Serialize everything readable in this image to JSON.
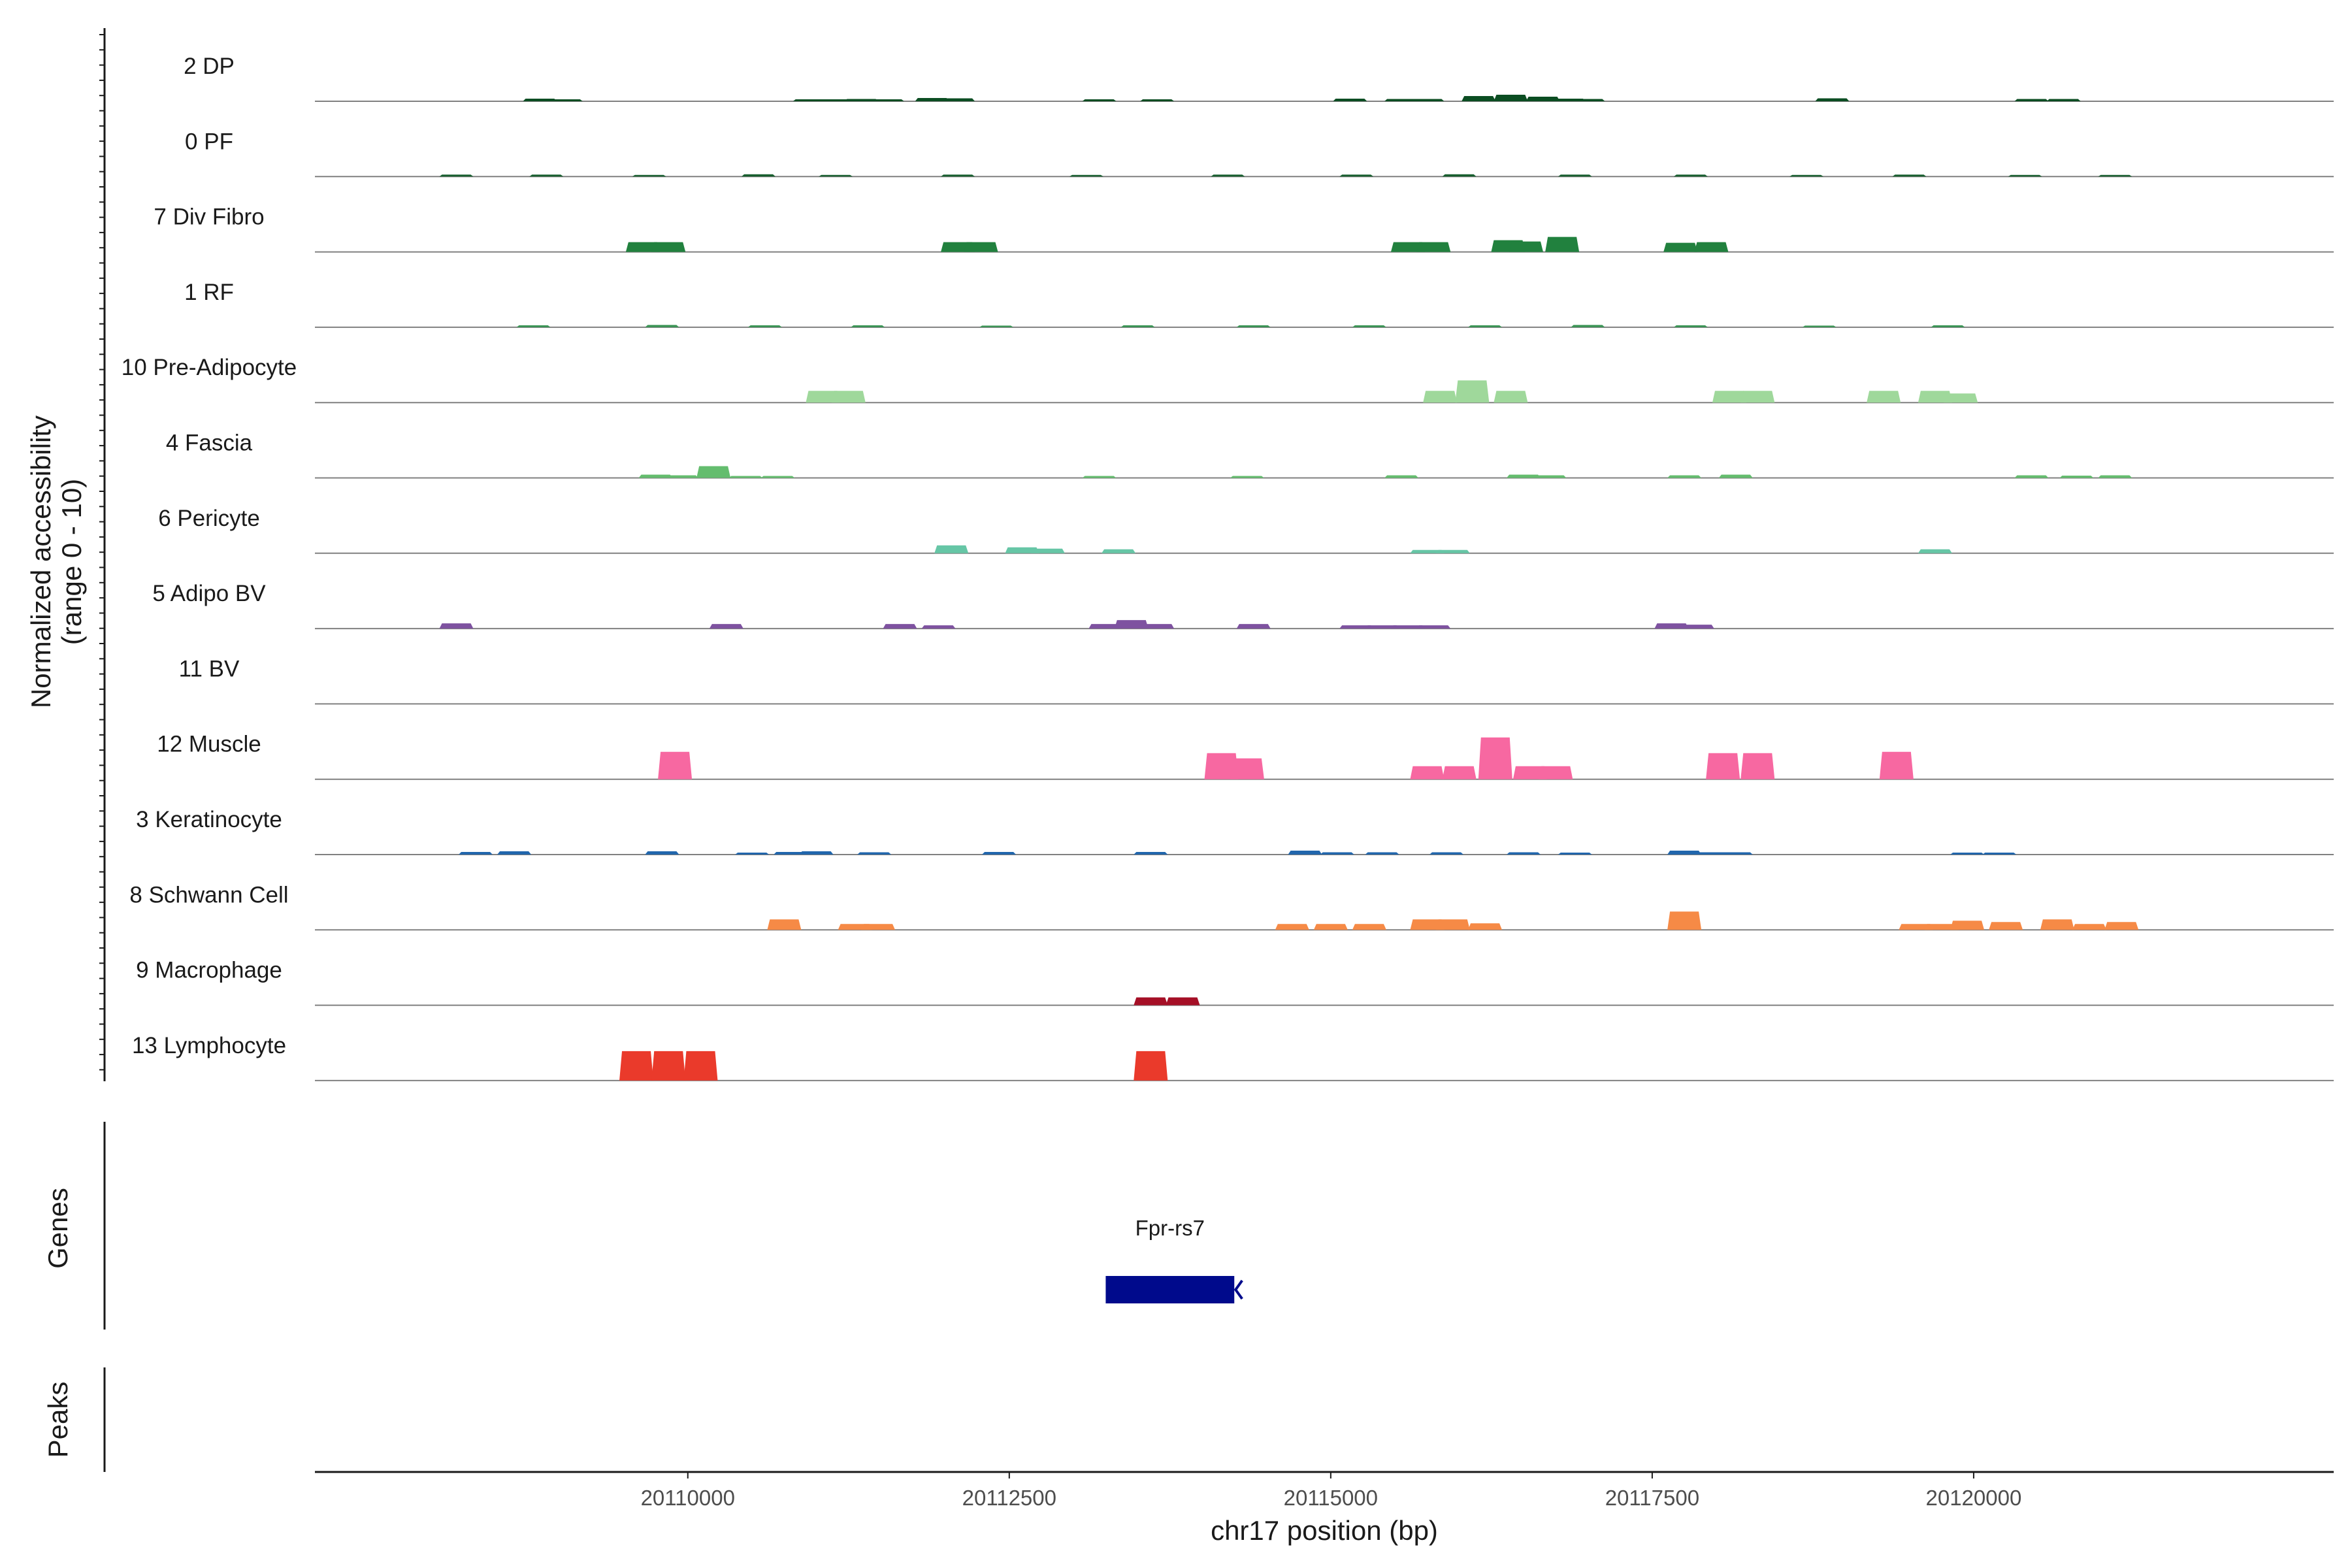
{
  "chart_data": {
    "type": "area",
    "title": "",
    "ylabel": [
      "Normalized accessibility",
      "(range 0 - 10)"
    ],
    "ylim": [
      0,
      10
    ],
    "xlabel": "chr17 position (bp)",
    "xlim": [
      20107100,
      20122800
    ],
    "xticks": [
      20110000,
      20112500,
      20115000,
      20117500,
      20120000
    ],
    "xtick_labels": [
      "20110000",
      "20112500",
      "20115000",
      "20117500",
      "20120000"
    ],
    "tracks": [
      {
        "name": "2 DP",
        "color": "#0b4d22",
        "peaks": [
          [
            20108850,
            0.4
          ],
          [
            20109050,
            0.3
          ],
          [
            20110950,
            0.3
          ],
          [
            20111150,
            0.3
          ],
          [
            20111350,
            0.35
          ],
          [
            20111550,
            0.3
          ],
          [
            20111900,
            0.5
          ],
          [
            20112100,
            0.45
          ],
          [
            20113200,
            0.3
          ],
          [
            20113650,
            0.3
          ],
          [
            20115150,
            0.4
          ],
          [
            20115550,
            0.35
          ],
          [
            20115750,
            0.35
          ],
          [
            20116150,
            0.8
          ],
          [
            20116400,
            1.0
          ],
          [
            20116650,
            0.7
          ],
          [
            20116850,
            0.4
          ],
          [
            20117000,
            0.35
          ],
          [
            20118900,
            0.45
          ],
          [
            20120450,
            0.35
          ],
          [
            20120700,
            0.35
          ]
        ]
      },
      {
        "name": "0 PF",
        "color": "#175e2e",
        "peaks": [
          [
            20108200,
            0.3
          ],
          [
            20108900,
            0.3
          ],
          [
            20109700,
            0.25
          ],
          [
            20110550,
            0.35
          ],
          [
            20111150,
            0.25
          ],
          [
            20112100,
            0.3
          ],
          [
            20113100,
            0.25
          ],
          [
            20114200,
            0.3
          ],
          [
            20115200,
            0.3
          ],
          [
            20116000,
            0.35
          ],
          [
            20116900,
            0.3
          ],
          [
            20117800,
            0.3
          ],
          [
            20118700,
            0.25
          ],
          [
            20119500,
            0.3
          ],
          [
            20120400,
            0.25
          ],
          [
            20121100,
            0.25
          ]
        ]
      },
      {
        "name": "7 Div Fibro",
        "color": "#21813e",
        "peaks": [
          [
            20109650,
            1.5
          ],
          [
            20109850,
            1.5
          ],
          [
            20112100,
            1.5
          ],
          [
            20112280,
            1.5
          ],
          [
            20115600,
            1.5
          ],
          [
            20115800,
            1.5
          ],
          [
            20116380,
            1.8
          ],
          [
            20116520,
            1.6
          ],
          [
            20116800,
            2.3
          ],
          [
            20117720,
            1.4
          ],
          [
            20117960,
            1.5
          ]
        ]
      },
      {
        "name": "1 RF",
        "color": "#3a9454",
        "peaks": [
          [
            20108800,
            0.3
          ],
          [
            20109800,
            0.35
          ],
          [
            20110600,
            0.3
          ],
          [
            20111400,
            0.3
          ],
          [
            20112400,
            0.25
          ],
          [
            20113500,
            0.3
          ],
          [
            20114400,
            0.3
          ],
          [
            20115300,
            0.3
          ],
          [
            20116200,
            0.3
          ],
          [
            20117000,
            0.35
          ],
          [
            20117800,
            0.3
          ],
          [
            20118800,
            0.25
          ],
          [
            20119800,
            0.3
          ]
        ]
      },
      {
        "name": "10 Pre-Adipocyte",
        "color": "#9fd89b",
        "peaks": [
          [
            20111050,
            1.8
          ],
          [
            20111250,
            1.8
          ],
          [
            20115850,
            1.8
          ],
          [
            20116100,
            3.4
          ],
          [
            20116400,
            1.8
          ],
          [
            20118100,
            1.8
          ],
          [
            20118320,
            1.8
          ],
          [
            20119300,
            1.8
          ],
          [
            20119700,
            1.8
          ],
          [
            20119900,
            1.4
          ]
        ]
      },
      {
        "name": "4 Fascia",
        "color": "#64bd6e",
        "peaks": [
          [
            20109750,
            0.5
          ],
          [
            20109950,
            0.4
          ],
          [
            20110200,
            1.8
          ],
          [
            20110450,
            0.3
          ],
          [
            20110700,
            0.3
          ],
          [
            20113200,
            0.3
          ],
          [
            20114350,
            0.3
          ],
          [
            20115550,
            0.4
          ],
          [
            20116500,
            0.5
          ],
          [
            20116700,
            0.4
          ],
          [
            20117750,
            0.4
          ],
          [
            20118150,
            0.5
          ],
          [
            20120450,
            0.4
          ],
          [
            20120800,
            0.35
          ],
          [
            20121100,
            0.4
          ]
        ]
      },
      {
        "name": "6 Pericyte",
        "color": "#66c6a6",
        "peaks": [
          [
            20112050,
            1.2
          ],
          [
            20112600,
            0.9
          ],
          [
            20112800,
            0.7
          ],
          [
            20113350,
            0.6
          ],
          [
            20115750,
            0.5
          ],
          [
            20115950,
            0.5
          ],
          [
            20119700,
            0.6
          ]
        ]
      },
      {
        "name": "5 Adipo BV",
        "color": "#7e52a0",
        "peaks": [
          [
            20108200,
            0.8
          ],
          [
            20110300,
            0.7
          ],
          [
            20111650,
            0.7
          ],
          [
            20111950,
            0.5
          ],
          [
            20113250,
            0.7
          ],
          [
            20113450,
            1.3
          ],
          [
            20113650,
            0.7
          ],
          [
            20114400,
            0.7
          ],
          [
            20115200,
            0.5
          ],
          [
            20115400,
            0.5
          ],
          [
            20115600,
            0.5
          ],
          [
            20115800,
            0.5
          ],
          [
            20117650,
            0.8
          ],
          [
            20117850,
            0.6
          ]
        ]
      },
      {
        "name": "11 BV",
        "color": "#7e52a0",
        "peaks": []
      },
      {
        "name": "12 Muscle",
        "color": "#f768a1",
        "peaks": [
          [
            20109900,
            4.2
          ],
          [
            20114150,
            4.0
          ],
          [
            20114350,
            3.2
          ],
          [
            20115750,
            2.0
          ],
          [
            20116000,
            2.0
          ],
          [
            20116280,
            6.4
          ],
          [
            20116550,
            2.0
          ],
          [
            20116750,
            2.0
          ],
          [
            20118050,
            4.0
          ],
          [
            20118320,
            4.0
          ],
          [
            20119400,
            4.2
          ]
        ]
      },
      {
        "name": "3 Keratinocyte",
        "color": "#2166ac",
        "peaks": [
          [
            20108350,
            0.4
          ],
          [
            20108650,
            0.5
          ],
          [
            20109800,
            0.5
          ],
          [
            20110500,
            0.3
          ],
          [
            20110800,
            0.4
          ],
          [
            20111000,
            0.5
          ],
          [
            20111450,
            0.35
          ],
          [
            20112420,
            0.4
          ],
          [
            20113600,
            0.4
          ],
          [
            20114800,
            0.6
          ],
          [
            20115050,
            0.35
          ],
          [
            20115400,
            0.35
          ],
          [
            20115900,
            0.35
          ],
          [
            20116500,
            0.35
          ],
          [
            20116900,
            0.3
          ],
          [
            20117750,
            0.6
          ],
          [
            20117950,
            0.35
          ],
          [
            20118150,
            0.35
          ],
          [
            20119950,
            0.3
          ],
          [
            20120200,
            0.3
          ]
        ]
      },
      {
        "name": "8 Schwann Cell",
        "color": "#f68a46",
        "peaks": [
          [
            20110750,
            1.6
          ],
          [
            20111300,
            0.9
          ],
          [
            20111480,
            0.9
          ],
          [
            20114700,
            0.9
          ],
          [
            20115000,
            0.9
          ],
          [
            20115300,
            0.9
          ],
          [
            20115750,
            1.6
          ],
          [
            20115950,
            1.6
          ],
          [
            20116200,
            1.0
          ],
          [
            20117750,
            2.8
          ],
          [
            20119550,
            0.9
          ],
          [
            20119750,
            0.9
          ],
          [
            20119950,
            1.4
          ],
          [
            20120250,
            1.2
          ],
          [
            20120650,
            1.6
          ],
          [
            20120900,
            0.9
          ],
          [
            20121150,
            1.2
          ]
        ]
      },
      {
        "name": "9 Macrophage",
        "color": "#a50f26",
        "peaks": [
          [
            20113600,
            1.2
          ],
          [
            20113850,
            1.2
          ]
        ]
      },
      {
        "name": "13 Lymphocyte",
        "color": "#ea3a2b",
        "peaks": [
          [
            20109600,
            4.5
          ],
          [
            20109850,
            4.5
          ],
          [
            20110100,
            4.5
          ],
          [
            20113600,
            4.5
          ]
        ]
      }
    ],
    "genes": [
      {
        "name": "Fpr-rs7",
        "start": 20113250,
        "end": 20114250,
        "strand": "-",
        "color": "#000a8c"
      }
    ],
    "genes_title": "Genes",
    "peaks_title": "Peaks"
  }
}
